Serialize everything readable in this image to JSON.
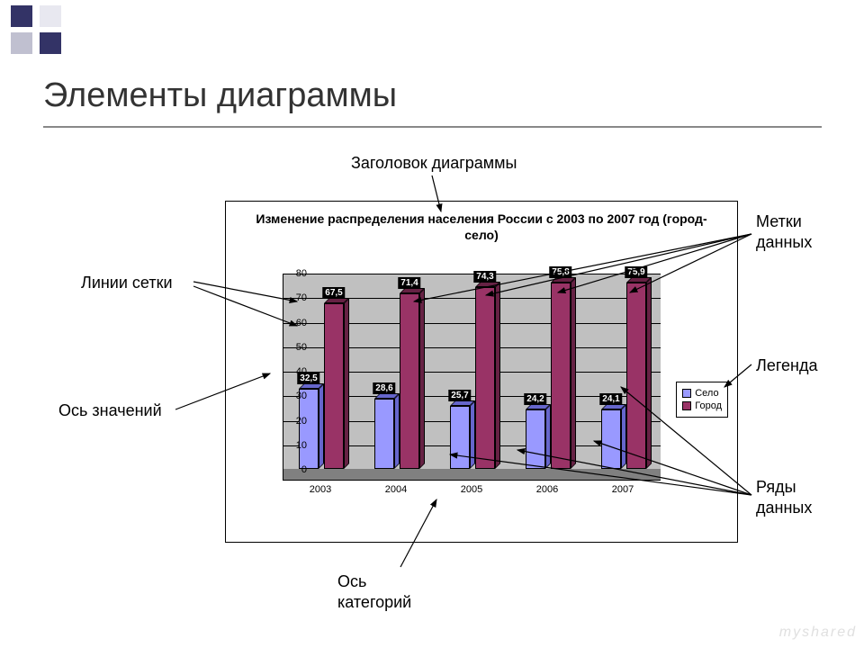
{
  "header_decor": {
    "colors": [
      "#333366",
      "#c0c0d0",
      "#e8e8f0"
    ]
  },
  "slide_title": "Элементы диаграммы",
  "annotations": {
    "chart_title": "Заголовок диаграммы",
    "gridlines": "Линии сетки",
    "value_axis": "Ось значений",
    "category_axis": "Ось\nкатегорий",
    "data_labels": "Метки\nданных",
    "legend": "Легенда",
    "data_series": "Ряды\nданных"
  },
  "chart": {
    "type": "bar",
    "title": "Изменение распределения населения России с 2003 по 2007 год (город-село)",
    "categories": [
      "2003",
      "2004",
      "2005",
      "2006",
      "2007"
    ],
    "series": [
      {
        "name": "Село",
        "color": "#9999ff",
        "color_dark": "#6666cc",
        "values": [
          32.5,
          28.6,
          25.7,
          24.2,
          24.1
        ]
      },
      {
        "name": "Город",
        "color": "#993366",
        "color_dark": "#662244",
        "values": [
          67.5,
          71.4,
          74.3,
          75.8,
          75.9
        ]
      }
    ],
    "ylim": [
      0,
      80
    ],
    "ytick_step": 10,
    "plot_bg": "#c0c0c0",
    "floor_color": "#808080",
    "grid_color": "#000000",
    "title_fontsize": 14,
    "tick_fontsize": 11,
    "label_bg": "#000000",
    "label_fg": "#ffffff"
  },
  "watermark": "myshared"
}
